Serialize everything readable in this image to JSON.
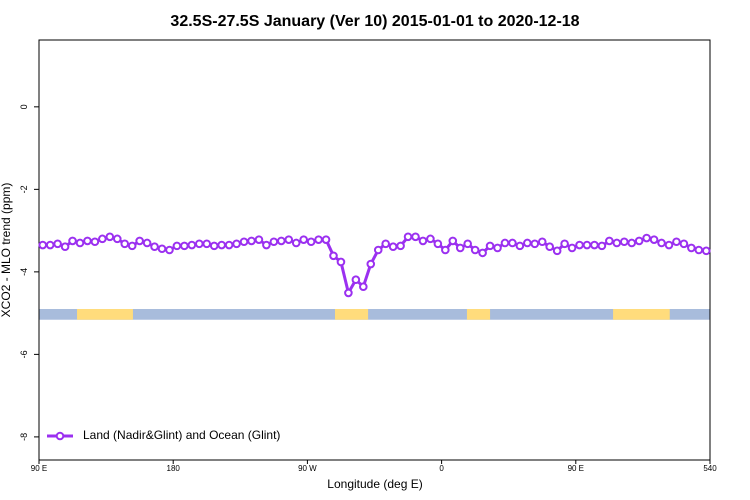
{
  "chart_data": {
    "type": "line",
    "title": "32.5S-27.5S January (Ver 10)   2015-01-01 to 2020-12-18",
    "x_label": "Longitude (deg E)",
    "y_label": "XCO2 - MLO trend (ppm)",
    "xlim": [
      90,
      540
    ],
    "ylim": [
      -8.56,
      1.62
    ],
    "xticks": [
      {
        "value": 90,
        "label": "90 E"
      },
      180,
      {
        "value": 270,
        "label": "90 W"
      },
      {
        "value": 360,
        "label": "0"
      },
      {
        "value": 450,
        "label": "90 E"
      },
      540
    ],
    "yticks": [
      0,
      -2,
      -4,
      -6,
      -8
    ],
    "legend": "bottom-left",
    "x": [
      92.5,
      97.5,
      102.5,
      107.5,
      112.5,
      117.5,
      122.5,
      127.5,
      132.5,
      137.5,
      142.5,
      147.5,
      152.5,
      157.5,
      162.5,
      167.5,
      172.5,
      177.5,
      182.5,
      187.5,
      192.5,
      197.5,
      202.5,
      207.5,
      212.5,
      217.5,
      222.5,
      227.5,
      232.5,
      237.5,
      242.5,
      247.5,
      252.5,
      257.5,
      262.5,
      267.5,
      272.5,
      277.5,
      282.5,
      287.5,
      292.5,
      297.5,
      302.5,
      307.5,
      312.5,
      317.5,
      322.5,
      327.5,
      332.5,
      337.5,
      342.5,
      347.5,
      352.5,
      357.5,
      362.5,
      367.5,
      372.5,
      377.5,
      382.5,
      387.5,
      392.5,
      397.5,
      402.5,
      407.5,
      412.5,
      417.5,
      422.5,
      427.5,
      432.5,
      437.5,
      442.5,
      447.5,
      452.5,
      457.5,
      462.5,
      467.5,
      472.5,
      477.5,
      482.5,
      487.5,
      492.5,
      497.5,
      502.5,
      507.5,
      512.5,
      517.5,
      522.5,
      527.5,
      532.5,
      537.5
    ],
    "series": [
      {
        "name": "Land (Nadir&Glint) and Ocean (Glint)",
        "color": "#9b30f0",
        "values": [
          -3.35,
          -3.35,
          -3.32,
          -3.39,
          -3.25,
          -3.3,
          -3.25,
          -3.27,
          -3.2,
          -3.15,
          -3.2,
          -3.32,
          -3.37,
          -3.25,
          -3.3,
          -3.39,
          -3.44,
          -3.47,
          -3.37,
          -3.37,
          -3.35,
          -3.32,
          -3.32,
          -3.37,
          -3.35,
          -3.35,
          -3.32,
          -3.27,
          -3.25,
          -3.22,
          -3.35,
          -3.27,
          -3.25,
          -3.22,
          -3.3,
          -3.22,
          -3.27,
          -3.22,
          -3.22,
          -3.61,
          -3.76,
          -4.51,
          -4.19,
          -4.36,
          -3.81,
          -3.47,
          -3.32,
          -3.39,
          -3.37,
          -3.15,
          -3.15,
          -3.25,
          -3.2,
          -3.32,
          -3.47,
          -3.25,
          -3.42,
          -3.32,
          -3.47,
          -3.54,
          -3.37,
          -3.42,
          -3.3,
          -3.3,
          -3.37,
          -3.3,
          -3.32,
          -3.27,
          -3.39,
          -3.49,
          -3.32,
          -3.42,
          -3.35,
          -3.35,
          -3.35,
          -3.37,
          -3.25,
          -3.3,
          -3.27,
          -3.3,
          -3.25,
          -3.18,
          -3.22,
          -3.3,
          -3.35,
          -3.27,
          -3.32,
          -3.42,
          -3.47,
          -3.49
        ]
      }
    ],
    "surface_band": {
      "range": [
        -5.16,
        -4.9
      ],
      "ocean_color": "#a8bcdc",
      "land_color": "#ffdc7c",
      "land_spans": [
        [
          115.5,
          153
        ],
        [
          288.5,
          310.7
        ],
        [
          377,
          392.5
        ],
        [
          475,
          513
        ]
      ]
    }
  }
}
